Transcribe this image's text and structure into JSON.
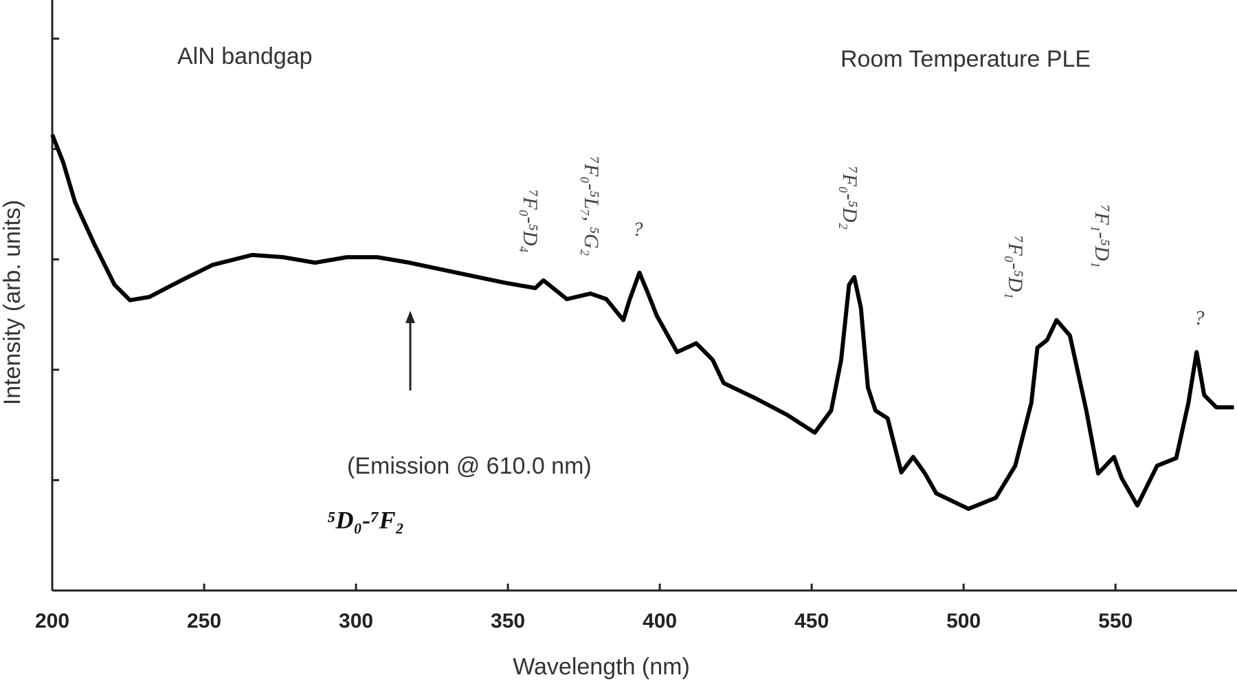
{
  "chart_data": {
    "type": "line",
    "x_label": "Wavelength (nm)",
    "y_label": "Intensity (arb. units)",
    "xlim": [
      200,
      590
    ],
    "xticks": [
      200,
      250,
      300,
      350,
      400,
      450,
      500,
      550
    ],
    "ylim": [
      0,
      5.35
    ],
    "yticks": [
      0,
      1,
      2,
      3,
      4,
      5
    ],
    "annotations": [
      "AlN bandgap",
      "Room Temperature PLE",
      "(Emission @ 610.0 nm)",
      "⁵D₀-⁷F₂",
      "⁷F₀-⁵D₄",
      "⁷F₀-⁵L₇, ⁵G₂",
      "?",
      "⁷F₀-⁵D₂",
      "⁷F₀-⁵D₁",
      "⁷F₁-⁵D₁",
      "?"
    ],
    "series": [
      {
        "color": "#000000",
        "x": [
          200,
          203.6,
          207.5,
          214,
          220.5,
          225.6,
          232,
          242.5,
          252.8,
          265.8,
          276,
          286.5,
          297,
          307,
          317.6,
          333,
          348.7,
          359,
          361.7,
          369.4,
          377.2,
          382.4,
          388,
          390,
          393.3,
          396,
          399,
          405.7,
          412,
          417.4,
          421,
          431.6,
          442,
          451,
          456.4,
          459.7,
          462.3,
          464,
          466.2,
          468.5,
          471,
          475,
          479.5,
          483.4,
          487.3,
          491,
          501.6,
          510.6,
          517,
          522.3,
          524.3,
          527.5,
          530.6,
          535,
          540.4,
          544.3,
          549.5,
          552,
          557.2,
          563.7,
          570,
          574,
          576.7,
          579.2,
          583.2,
          589
        ],
        "values": [
          4.13,
          3.88,
          3.52,
          3.13,
          2.77,
          2.63,
          2.66,
          2.81,
          2.95,
          3.04,
          3.02,
          2.97,
          3.02,
          3.02,
          2.97,
          2.88,
          2.79,
          2.74,
          2.81,
          2.64,
          2.69,
          2.64,
          2.45,
          2.63,
          2.88,
          2.7,
          2.49,
          2.16,
          2.24,
          2.09,
          1.88,
          1.74,
          1.59,
          1.43,
          1.63,
          2.09,
          2.77,
          2.84,
          2.56,
          1.84,
          1.63,
          1.56,
          1.07,
          1.21,
          1.06,
          0.88,
          0.74,
          0.84,
          1.13,
          1.7,
          2.2,
          2.27,
          2.45,
          2.31,
          1.63,
          1.06,
          1.21,
          1.02,
          0.77,
          1.13,
          1.2,
          1.7,
          2.16,
          1.77,
          1.66,
          1.66
        ]
      }
    ]
  }
}
